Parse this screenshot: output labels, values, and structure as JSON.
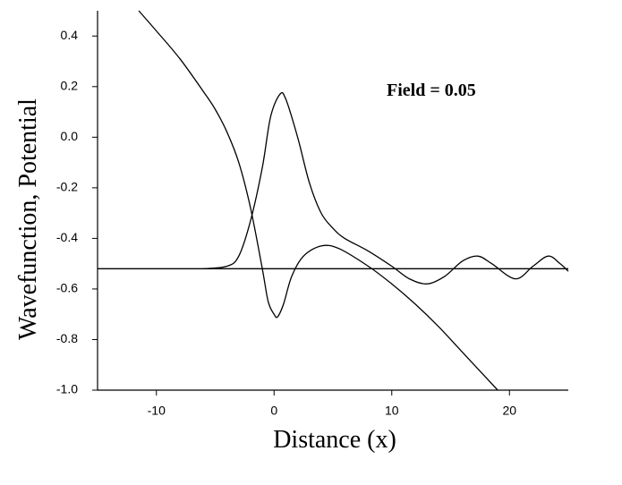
{
  "chart_data": {
    "type": "line",
    "ylabel": "Wavefunction, Potential",
    "xlabel": "Distance (x)",
    "annotation": "Field = 0.05",
    "xlim": [
      -15,
      25
    ],
    "ylim": [
      -1.0,
      0.5
    ],
    "xticks": [
      -10,
      0,
      10,
      20
    ],
    "yticks": [
      0.4,
      0.2,
      {
        "value": 0,
        "label": "0.0"
      },
      -0.2,
      -0.4,
      -0.6,
      -0.8,
      {
        "value": -1,
        "label": "-1.0"
      }
    ],
    "series": [
      {
        "color": "#000000",
        "x": [
          -11.5,
          -10,
          -8,
          -6,
          -5,
          -4,
          -3,
          -2,
          -1,
          -0.5,
          0,
          0.3,
          0.8,
          1.5,
          2.5,
          4,
          5.5,
          8,
          10,
          12,
          14,
          16,
          18,
          19
        ],
        "values": [
          0.5,
          0.42,
          0.31,
          0.18,
          0.11,
          0.02,
          -0.1,
          -0.28,
          -0.52,
          -0.65,
          -0.7,
          -0.71,
          -0.66,
          -0.55,
          -0.47,
          -0.43,
          -0.44,
          -0.51,
          -0.58,
          -0.66,
          -0.75,
          -0.85,
          -0.95,
          -1.0
        ]
      },
      {
        "color": "#000000",
        "x": [
          -6,
          -4,
          -3,
          -2,
          -1,
          -0.3,
          0.5,
          1,
          2,
          3,
          4,
          5,
          6,
          8,
          10,
          11.5,
          13,
          14.5,
          16,
          17.3,
          18.5,
          20.5,
          22,
          23.3,
          24.3,
          25
        ],
        "values": [
          -0.52,
          -0.51,
          -0.47,
          -0.33,
          -0.12,
          0.08,
          0.17,
          0.15,
          0.0,
          -0.18,
          -0.3,
          -0.36,
          -0.4,
          -0.45,
          -0.51,
          -0.56,
          -0.58,
          -0.55,
          -0.49,
          -0.47,
          -0.5,
          -0.56,
          -0.51,
          -0.47,
          -0.5,
          -0.53
        ]
      },
      {
        "color": "#000000",
        "x": [
          -15,
          25
        ],
        "values": [
          -0.52,
          -0.52
        ]
      }
    ]
  }
}
